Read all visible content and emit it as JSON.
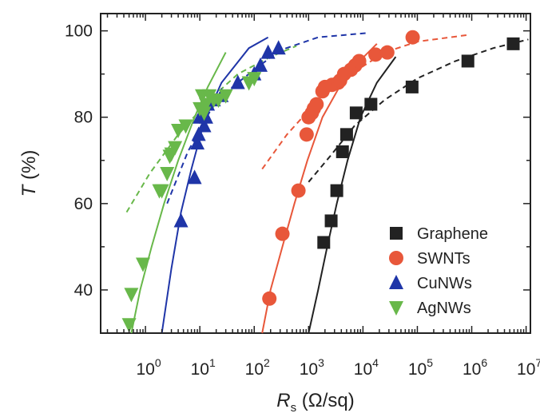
{
  "chart_data": {
    "type": "scatter",
    "title": "",
    "xlabel": {
      "main": "R",
      "sub": "s",
      "unit": " (Ω/sq)"
    },
    "ylabel": {
      "main": "T",
      "unit": " (%)"
    },
    "xscale": "log",
    "xlim": [
      0.15,
      12000000
    ],
    "ylim": [
      30,
      104
    ],
    "grid": false,
    "legend_placement": "bottom-right",
    "y_ticks": [
      {
        "value": 40,
        "label": "40"
      },
      {
        "value": 60,
        "label": "60"
      },
      {
        "value": 80,
        "label": "80"
      },
      {
        "value": 100,
        "label": "100"
      }
    ],
    "x_ticks": [
      {
        "value": 1,
        "base": "10",
        "exp": "0"
      },
      {
        "value": 10,
        "base": "10",
        "exp": "1"
      },
      {
        "value": 100,
        "base": "10",
        "exp": "2"
      },
      {
        "value": 1000,
        "base": "10",
        "exp": "3"
      },
      {
        "value": 10000,
        "base": "10",
        "exp": "4"
      },
      {
        "value": 100000,
        "base": "10",
        "exp": "5"
      },
      {
        "value": 1000000,
        "base": "10",
        "exp": "6"
      },
      {
        "value": 10000000,
        "base": "10",
        "exp": "7"
      }
    ],
    "series": [
      {
        "name": "Graphene",
        "marker": "square",
        "color": "#222222",
        "points": [
          [
            1900,
            51
          ],
          [
            2600,
            56
          ],
          [
            3300,
            63
          ],
          [
            4200,
            72
          ],
          [
            5000,
            76
          ],
          [
            7500,
            81
          ],
          [
            14000,
            83
          ],
          [
            80000,
            87
          ],
          [
            850000,
            93
          ],
          [
            5800000,
            97
          ]
        ],
        "fit_solid": [
          [
            1000,
            30
          ],
          [
            1500,
            40
          ],
          [
            2200,
            50
          ],
          [
            3300,
            60
          ],
          [
            5200,
            70
          ],
          [
            9000,
            80
          ],
          [
            18000,
            88
          ],
          [
            40000,
            94
          ]
        ],
        "fit_dashed": [
          [
            1000,
            65
          ],
          [
            2500,
            71
          ],
          [
            7000,
            78
          ],
          [
            25000,
            84
          ],
          [
            100000,
            89
          ],
          [
            500000,
            93
          ],
          [
            2500000,
            96
          ],
          [
            11000000,
            98
          ]
        ]
      },
      {
        "name": "SWNTs",
        "marker": "circle",
        "color": "#e8573a",
        "points": [
          [
            190,
            38
          ],
          [
            330,
            53
          ],
          [
            650,
            63
          ],
          [
            920,
            76
          ],
          [
            1000,
            80
          ],
          [
            1150,
            81
          ],
          [
            1250,
            82
          ],
          [
            1400,
            83
          ],
          [
            1800,
            86
          ],
          [
            2000,
            87
          ],
          [
            2700,
            87.5
          ],
          [
            3500,
            88
          ],
          [
            3800,
            88.5
          ],
          [
            4500,
            90
          ],
          [
            6000,
            91
          ],
          [
            7200,
            92
          ],
          [
            8500,
            93
          ],
          [
            17000,
            94.5
          ],
          [
            28000,
            95
          ],
          [
            82000,
            98.5
          ]
        ],
        "fit_solid": [
          [
            140,
            30
          ],
          [
            200,
            40
          ],
          [
            330,
            50
          ],
          [
            550,
            60
          ],
          [
            950,
            70
          ],
          [
            1800,
            80
          ],
          [
            5000,
            90
          ],
          [
            18000,
            97
          ]
        ],
        "fit_dashed": [
          [
            140,
            68
          ],
          [
            400,
            76
          ],
          [
            1500,
            84
          ],
          [
            6000,
            90
          ],
          [
            25000,
            95
          ],
          [
            100000,
            97.5
          ],
          [
            800000,
            99
          ]
        ]
      },
      {
        "name": "CuNWs",
        "marker": "triangle-up",
        "color": "#1f35a8",
        "points": [
          [
            4.5,
            56
          ],
          [
            8,
            66
          ],
          [
            9,
            74
          ],
          [
            9.5,
            76
          ],
          [
            10,
            80
          ],
          [
            11,
            81
          ],
          [
            12,
            78
          ],
          [
            13,
            80
          ],
          [
            14,
            83
          ],
          [
            18,
            84
          ],
          [
            25,
            85
          ],
          [
            50,
            88
          ],
          [
            100,
            90
          ],
          [
            130,
            92
          ],
          [
            180,
            95
          ],
          [
            280,
            96
          ]
        ],
        "fit_solid": [
          [
            2,
            30
          ],
          [
            3,
            45
          ],
          [
            4.5,
            58
          ],
          [
            7,
            68
          ],
          [
            12,
            79
          ],
          [
            25,
            88
          ],
          [
            80,
            96
          ],
          [
            180,
            98.5
          ]
        ],
        "fit_dashed": [
          [
            2.5,
            60
          ],
          [
            6,
            72
          ],
          [
            20,
            84
          ],
          [
            100,
            91
          ],
          [
            300,
            95.5
          ],
          [
            1500,
            98.5
          ],
          [
            12000,
            99.5
          ]
        ]
      },
      {
        "name": "AgNWs",
        "marker": "triangle-down",
        "color": "#68b84a",
        "points": [
          [
            0.5,
            32
          ],
          [
            0.55,
            39
          ],
          [
            0.9,
            46
          ],
          [
            1.8,
            63
          ],
          [
            2.0,
            63
          ],
          [
            2.5,
            67
          ],
          [
            2.8,
            71
          ],
          [
            3.0,
            71.5
          ],
          [
            3.5,
            73
          ],
          [
            4.0,
            77
          ],
          [
            5.5,
            78
          ],
          [
            10,
            82
          ],
          [
            11,
            85
          ],
          [
            12,
            81
          ],
          [
            13,
            83
          ],
          [
            15,
            85
          ],
          [
            18,
            84
          ],
          [
            22,
            84
          ],
          [
            30,
            85
          ],
          [
            80,
            88
          ],
          [
            100,
            89
          ]
        ],
        "fit_solid": [
          [
            0.55,
            30
          ],
          [
            0.8,
            40
          ],
          [
            1.3,
            50
          ],
          [
            2.2,
            60
          ],
          [
            4,
            70
          ],
          [
            8,
            80
          ],
          [
            14,
            87
          ],
          [
            30,
            95
          ]
        ],
        "fit_dashed": [
          [
            0.45,
            58
          ],
          [
            1.2,
            67
          ],
          [
            4,
            76
          ],
          [
            15,
            84
          ],
          [
            50,
            90
          ],
          [
            200,
            94
          ],
          [
            600,
            96.5
          ]
        ]
      }
    ]
  }
}
